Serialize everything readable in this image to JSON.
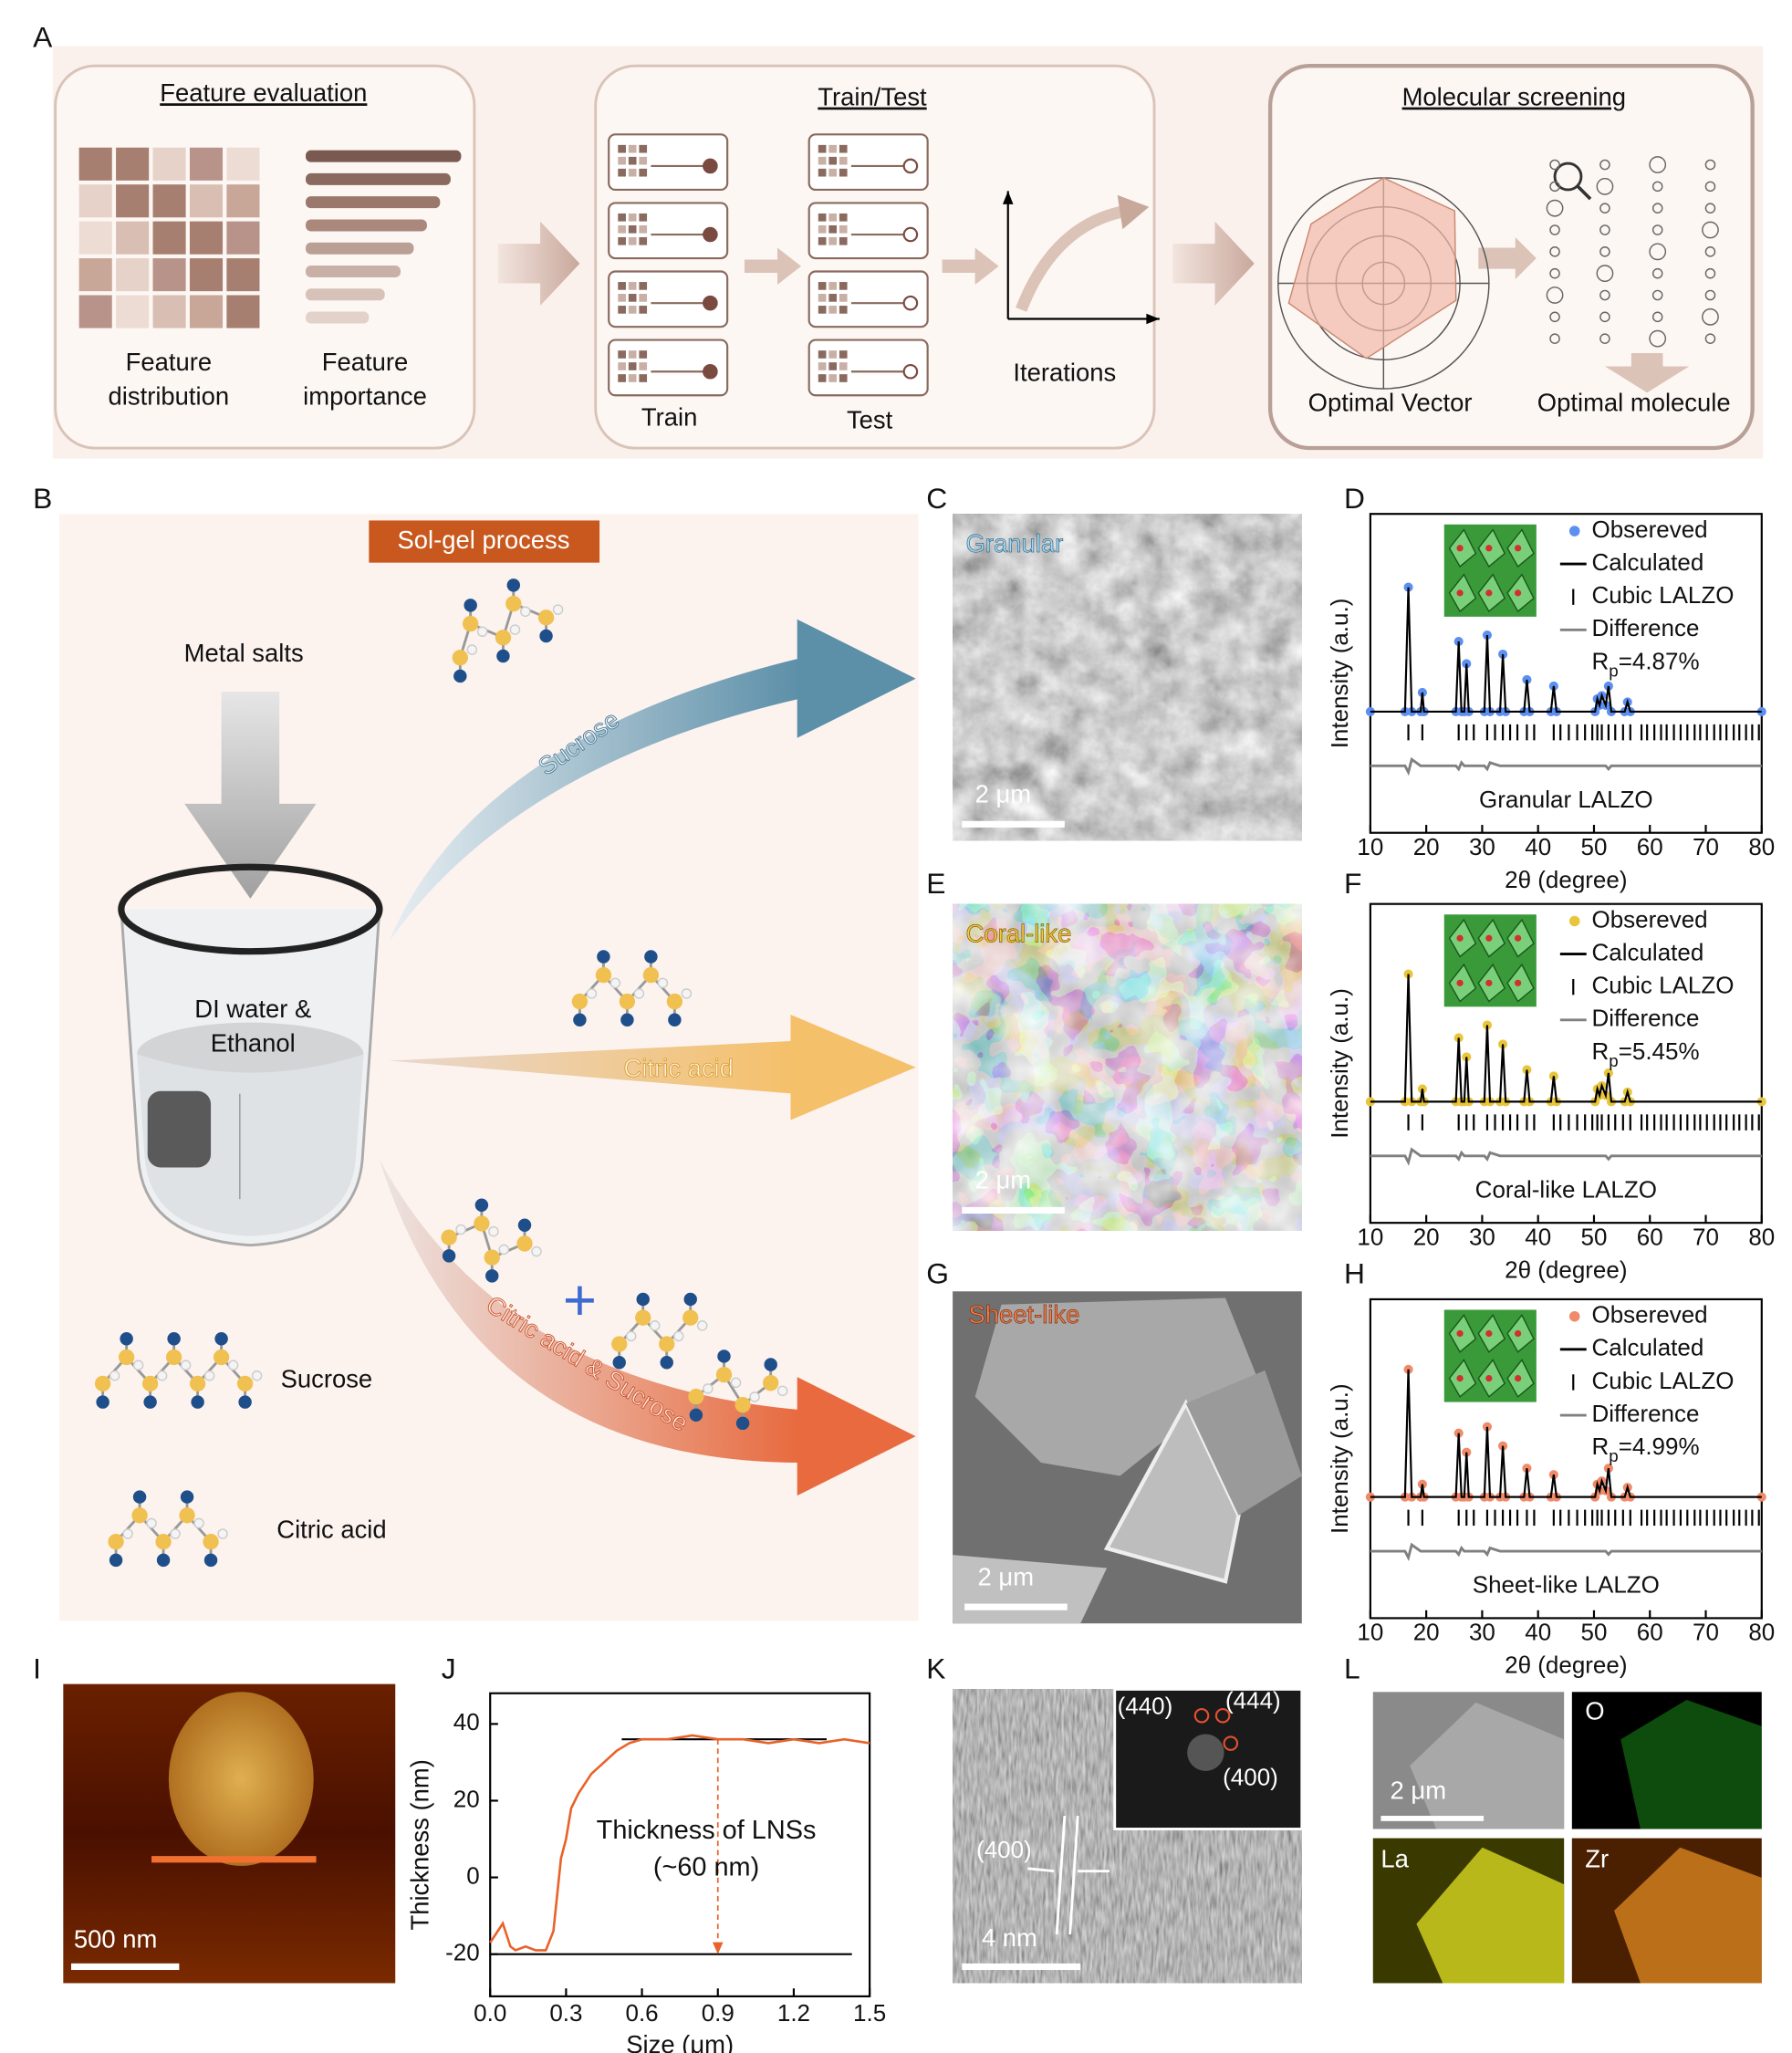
{
  "panel_labels": [
    "A",
    "B",
    "C",
    "D",
    "E",
    "F",
    "G",
    "H",
    "I",
    "J",
    "K",
    "L"
  ],
  "panel_a": {
    "titles": [
      "Feature evaluation",
      "Train/Test",
      "Molecular screening"
    ],
    "labels": [
      "Feature",
      "distribution",
      "Feature",
      "importance",
      "Train",
      "Test",
      "Iterations",
      "Optimal Vector",
      "Optimal molecule"
    ]
  },
  "panel_b": {
    "process": "Sol-gel process",
    "metal_salts": "Metal salts",
    "solvent": [
      "DI water &",
      "Ethanol"
    ],
    "routes": [
      "Sucrose",
      "Citric acid",
      "Citric acid & Sucrose"
    ],
    "legend": [
      "Sucrose",
      "Citric acid"
    ]
  },
  "sem": {
    "labels": [
      "Granular",
      "Coral-like",
      "Sheet-like"
    ],
    "scale": "2 μm"
  },
  "afm": {
    "scale": "500 nm"
  },
  "tem": {
    "planes": [
      "(440)",
      "(444)",
      "(400)",
      "(400)"
    ],
    "scale": "4 nm"
  },
  "mapping": {
    "elements": [
      "O",
      "La",
      "Zr"
    ],
    "scale": "2 μm"
  },
  "chart_data": [
    {
      "type": "xrd",
      "xlabel": "2θ (degree)",
      "ylabel": "Intensity (a.u.)",
      "xlim": [
        10,
        80
      ],
      "ylim": [
        0,
        100
      ],
      "xticks": [
        10,
        20,
        30,
        40,
        50,
        60,
        70,
        80
      ],
      "x": [
        10,
        16.2,
        16.8,
        17.4,
        19,
        19.3,
        19.6,
        25.3,
        25.8,
        26.3,
        26.8,
        27.2,
        27.6,
        30.4,
        30.9,
        31.4,
        33.2,
        33.7,
        34.2,
        37.5,
        38,
        38.5,
        42.3,
        42.8,
        43.3,
        50.2,
        50.6,
        51,
        51.4,
        52.1,
        52.6,
        53.1,
        55.5,
        56,
        56.5,
        80
      ],
      "series": [
        {
          "name": "Obsereved",
          "color": "#5b8ff0",
          "values": [
            38,
            38,
            77,
            38,
            38,
            44,
            38,
            38,
            60,
            38,
            38,
            53,
            38,
            38,
            62,
            38,
            38,
            56,
            38,
            38,
            48,
            38,
            38,
            46,
            38,
            38,
            42,
            40,
            43,
            40,
            46,
            38,
            38,
            41,
            38,
            38
          ]
        },
        {
          "name": "Calculated",
          "color": "#000000",
          "values": [
            38,
            38,
            77,
            38,
            38,
            44,
            38,
            38,
            60,
            38,
            38,
            53,
            38,
            38,
            62,
            38,
            38,
            56,
            38,
            38,
            48,
            38,
            38,
            46,
            38,
            38,
            42,
            40,
            43,
            40,
            46,
            38,
            38,
            41,
            38,
            38
          ]
        },
        {
          "name": "Difference",
          "color": "#808080",
          "values": [
            21,
            21,
            19,
            23,
            21,
            21,
            21,
            21,
            20,
            22,
            21,
            21,
            21,
            21,
            20,
            22,
            21,
            21,
            21,
            21,
            21,
            21,
            21,
            21,
            21,
            21,
            21,
            21,
            21,
            21,
            20,
            21,
            21,
            21,
            21,
            21
          ]
        }
      ],
      "reflections": {
        "name": "Cubic LALZO",
        "x": [
          16.8,
          19.3,
          25.8,
          27.2,
          28.5,
          30.9,
          32.3,
          33.7,
          35,
          36.3,
          38,
          39.3,
          42.8,
          44,
          45.5,
          47,
          48.4,
          49.7,
          50.6,
          51.4,
          52.6,
          53.8,
          55.2,
          56.5,
          58.5,
          59.5,
          60.8,
          62,
          63,
          64.3,
          65.5,
          66.7,
          68,
          69,
          70.2,
          71.5,
          72.6,
          73.7,
          75,
          76,
          77.2,
          78.3,
          79.5
        ]
      },
      "rp": {
        "main": "R",
        "sub": "p",
        "rest": "=4.87%"
      },
      "sample_label": "Granular LALZO",
      "sample_color": "#5b8ff0"
    },
    {
      "type": "xrd",
      "xlabel": "2θ (degree)",
      "ylabel": "Intensity (a.u.)",
      "xlim": [
        10,
        80
      ],
      "ylim": [
        0,
        100
      ],
      "xticks": [
        10,
        20,
        30,
        40,
        50,
        60,
        70,
        80
      ],
      "x": [
        10,
        16.2,
        16.8,
        17.4,
        19,
        19.3,
        19.6,
        25.3,
        25.8,
        26.3,
        26.8,
        27.2,
        27.6,
        30.4,
        30.9,
        31.4,
        33.2,
        33.7,
        34.2,
        37.5,
        38,
        38.5,
        42.3,
        42.8,
        43.3,
        50.2,
        50.6,
        51,
        51.4,
        52.1,
        52.6,
        53.1,
        55.5,
        56,
        56.5,
        80
      ],
      "series": [
        {
          "name": "Obsereved",
          "color": "#e8c53a",
          "values": [
            38,
            38,
            78,
            38,
            38,
            42,
            38,
            38,
            58,
            38,
            38,
            52,
            38,
            38,
            62,
            38,
            38,
            56,
            38,
            38,
            48,
            38,
            38,
            46,
            38,
            38,
            42,
            40,
            43,
            40,
            47,
            38,
            38,
            41,
            38,
            38
          ]
        },
        {
          "name": "Calculated",
          "color": "#000000",
          "values": [
            38,
            38,
            78,
            38,
            38,
            42,
            38,
            38,
            58,
            38,
            38,
            52,
            38,
            38,
            62,
            38,
            38,
            56,
            38,
            38,
            48,
            38,
            38,
            46,
            38,
            38,
            42,
            40,
            43,
            40,
            47,
            38,
            38,
            41,
            38,
            38
          ]
        },
        {
          "name": "Difference",
          "color": "#808080",
          "values": [
            21,
            21,
            19,
            23,
            21,
            21,
            21,
            21,
            20,
            22,
            21,
            21,
            21,
            21,
            20,
            22,
            21,
            21,
            21,
            21,
            21,
            21,
            21,
            21,
            21,
            21,
            21,
            21,
            21,
            21,
            20,
            21,
            21,
            21,
            21,
            21
          ]
        }
      ],
      "reflections": {
        "name": "Cubic LALZO",
        "x": [
          16.8,
          19.3,
          25.8,
          27.2,
          28.5,
          30.9,
          32.3,
          33.7,
          35,
          36.3,
          38,
          39.3,
          42.8,
          44,
          45.5,
          47,
          48.4,
          49.7,
          50.6,
          51.4,
          52.6,
          53.8,
          55.2,
          56.5,
          58.5,
          59.5,
          60.8,
          62,
          63,
          64.3,
          65.5,
          66.7,
          68,
          69,
          70.2,
          71.5,
          72.6,
          73.7,
          75,
          76,
          77.2,
          78.3,
          79.5
        ]
      },
      "rp": {
        "main": "R",
        "sub": "p",
        "rest": "=5.45%"
      },
      "sample_label": "Coral-like LALZO",
      "sample_color": "#e8c53a"
    },
    {
      "type": "xrd",
      "xlabel": "2θ (degree)",
      "ylabel": "Intensity (a.u.)",
      "xlim": [
        10,
        80
      ],
      "ylim": [
        0,
        100
      ],
      "xticks": [
        10,
        20,
        30,
        40,
        50,
        60,
        70,
        80
      ],
      "x": [
        10,
        16.2,
        16.8,
        17.4,
        19,
        19.3,
        19.6,
        25.3,
        25.8,
        26.3,
        26.8,
        27.2,
        27.6,
        30.4,
        30.9,
        31.4,
        33.2,
        33.7,
        34.2,
        37.5,
        38,
        38.5,
        42.3,
        42.8,
        43.3,
        50.2,
        50.6,
        51,
        51.4,
        52.1,
        52.6,
        53.1,
        55.5,
        56,
        56.5,
        80
      ],
      "series": [
        {
          "name": "Obsereved",
          "color": "#f08a6a",
          "values": [
            38,
            38,
            78,
            38,
            38,
            42,
            38,
            38,
            58,
            38,
            38,
            52,
            38,
            38,
            60,
            38,
            38,
            54,
            38,
            38,
            47,
            38,
            38,
            45,
            38,
            38,
            42,
            40,
            43,
            40,
            47,
            38,
            38,
            41,
            38,
            38
          ]
        },
        {
          "name": "Calculated",
          "color": "#000000",
          "values": [
            38,
            38,
            78,
            38,
            38,
            42,
            38,
            38,
            58,
            38,
            38,
            52,
            38,
            38,
            60,
            38,
            38,
            54,
            38,
            38,
            47,
            38,
            38,
            45,
            38,
            38,
            42,
            40,
            43,
            40,
            47,
            38,
            38,
            41,
            38,
            38
          ]
        },
        {
          "name": "Difference",
          "color": "#808080",
          "values": [
            21,
            21,
            19,
            23,
            21,
            21,
            21,
            21,
            20,
            22,
            21,
            21,
            21,
            21,
            20,
            22,
            21,
            21,
            21,
            21,
            21,
            21,
            21,
            21,
            21,
            21,
            21,
            21,
            21,
            21,
            20,
            21,
            21,
            21,
            21,
            21
          ]
        }
      ],
      "reflections": {
        "name": "Cubic LALZO",
        "x": [
          16.8,
          19.3,
          25.8,
          27.2,
          28.5,
          30.9,
          32.3,
          33.7,
          35,
          36.3,
          38,
          39.3,
          42.8,
          44,
          45.5,
          47,
          48.4,
          49.7,
          50.6,
          51.4,
          52.6,
          53.8,
          55.2,
          56.5,
          58.5,
          59.5,
          60.8,
          62,
          63,
          64.3,
          65.5,
          66.7,
          68,
          69,
          70.2,
          71.5,
          72.6,
          73.7,
          75,
          76,
          77.2,
          78.3,
          79.5
        ]
      },
      "rp": {
        "main": "R",
        "sub": "p",
        "rest": "=4.99%"
      },
      "sample_label": "Sheet-like LALZO",
      "sample_color": "#f08a6a"
    },
    {
      "type": "line",
      "xlabel": "Size (μm)",
      "ylabel": "Thickness (nm)",
      "color": "#e8622a",
      "xlim": [
        0,
        1.5
      ],
      "ylim": [
        -31,
        48
      ],
      "xticks": [
        {
          "value": 0,
          "label": "0.0"
        },
        0.3,
        0.6,
        0.9,
        1.2,
        1.5
      ],
      "yticks": [
        -20,
        0,
        20,
        40
      ],
      "x": [
        0,
        0.02,
        0.05,
        0.08,
        0.1,
        0.14,
        0.18,
        0.22,
        0.25,
        0.28,
        0.3,
        0.32,
        0.35,
        0.4,
        0.45,
        0.5,
        0.55,
        0.6,
        0.7,
        0.8,
        0.9,
        1.0,
        1.1,
        1.2,
        1.3,
        1.4,
        1.5
      ],
      "values": [
        -17,
        -15,
        -12,
        -18,
        -19,
        -18,
        -19,
        -19,
        -14,
        5,
        10,
        18,
        22,
        27,
        30,
        33,
        35,
        36,
        36,
        37,
        36,
        36,
        35,
        36,
        35,
        36,
        35
      ],
      "reference_lines": [
        {
          "y": 36,
          "x": [
            0.52,
            1.33
          ]
        },
        {
          "y": -20,
          "x": [
            0,
            1.43
          ]
        }
      ],
      "annotation": [
        "Thickness of LNSs",
        "(~60 nm)"
      ],
      "arrow_x": 0.9
    }
  ]
}
